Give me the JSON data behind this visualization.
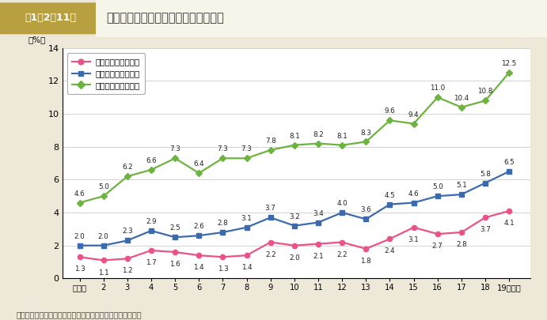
{
  "title": "役職別管理職に占める女性割合の推移",
  "header_label": "第1－2－11図",
  "ylabel": "（%）",
  "footer": "（備考）　厚生労働者「賃金構造基本統計調査」より作成。",
  "x_labels": [
    "平成元",
    "2",
    "3",
    "4",
    "5",
    "6",
    "7",
    "8",
    "9",
    "10",
    "11",
    "12",
    "13",
    "14",
    "15",
    "16",
    "17",
    "18",
    "19（年）"
  ],
  "x_values": [
    1,
    2,
    3,
    4,
    5,
    6,
    7,
    8,
    9,
    10,
    11,
    12,
    13,
    14,
    15,
    16,
    17,
    18,
    19
  ],
  "bucho": [
    1.3,
    1.1,
    1.2,
    1.7,
    1.6,
    1.4,
    1.3,
    1.4,
    2.2,
    2.0,
    2.1,
    2.2,
    1.8,
    2.4,
    3.1,
    2.7,
    2.8,
    3.7,
    4.1
  ],
  "kacho": [
    2.0,
    2.0,
    2.3,
    2.9,
    2.5,
    2.6,
    2.8,
    3.1,
    3.7,
    3.2,
    3.4,
    4.0,
    3.6,
    4.5,
    4.6,
    5.0,
    5.1,
    5.8,
    6.5
  ],
  "kakari": [
    4.6,
    5.0,
    6.2,
    6.6,
    7.3,
    6.4,
    7.3,
    7.3,
    7.8,
    8.1,
    8.2,
    8.1,
    8.3,
    9.6,
    9.4,
    11.0,
    10.4,
    10.8,
    12.5
  ],
  "bucho_color": "#e8538a",
  "kacho_color": "#3b6aad",
  "kakari_color": "#6db33f",
  "legend_bucho": "民間企業の部長相当",
  "legend_kacho": "民間企業の課長相当",
  "legend_kakari": "民間企業の係長相当",
  "ylim": [
    0,
    14
  ],
  "yticks": [
    0,
    2,
    4,
    6,
    8,
    10,
    12,
    14
  ],
  "bg_color": "#ede8d8",
  "plot_bg": "#ffffff",
  "header_bg_left": "#b8a040",
  "header_bg_right": "#f0ede0",
  "header_text_color": "#ffffff",
  "header_title_color": "#333333"
}
